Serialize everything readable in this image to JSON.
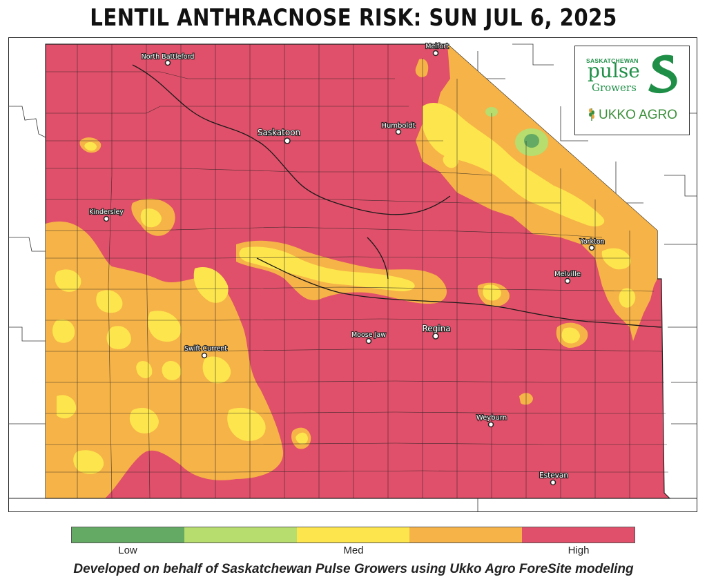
{
  "title": "LENTIL ANTHRACNOSE RISK: SUN JUL 6, 2025",
  "map": {
    "colors": {
      "high": "#e0506a",
      "medium_high": "#f6b347",
      "medium": "#fde54d",
      "low_medium": "#b6dd6e",
      "low": "#64aa64",
      "boundary": "#1a1a1a",
      "outside": "#ffffff"
    },
    "cities": [
      {
        "name": "North Battleford",
        "label": "North Battleford"
      },
      {
        "name": "Melfort",
        "label": "Melfort"
      },
      {
        "name": "Saskatoon",
        "label": "Saskatoon"
      },
      {
        "name": "Humboldt",
        "label": "Humboldt"
      },
      {
        "name": "Kindersley",
        "label": "Kindersley"
      },
      {
        "name": "Yorkton",
        "label": "Yorkton"
      },
      {
        "name": "Melville",
        "label": "Melville"
      },
      {
        "name": "Regina",
        "label": "Regina"
      },
      {
        "name": "Moose Jaw",
        "label": "Moose Jaw"
      },
      {
        "name": "Swift Current",
        "label": "Swift Current"
      },
      {
        "name": "Weyburn",
        "label": "Weyburn"
      },
      {
        "name": "Estevan",
        "label": "Estevan"
      }
    ]
  },
  "logos": {
    "spg_small": "SASKATCHEWAN",
    "spg_pulse": "pulse",
    "spg_growers": "Growers",
    "ukko": "UKKO AGRO"
  },
  "legend": {
    "colors": [
      "#64aa64",
      "#b6dd6e",
      "#fde54d",
      "#f6b347",
      "#e0506a"
    ],
    "labels": [
      "Low",
      "Med",
      "High"
    ]
  },
  "footer": "Developed on behalf of Saskatchewan Pulse Growers using Ukko Agro ForeSite modeling"
}
